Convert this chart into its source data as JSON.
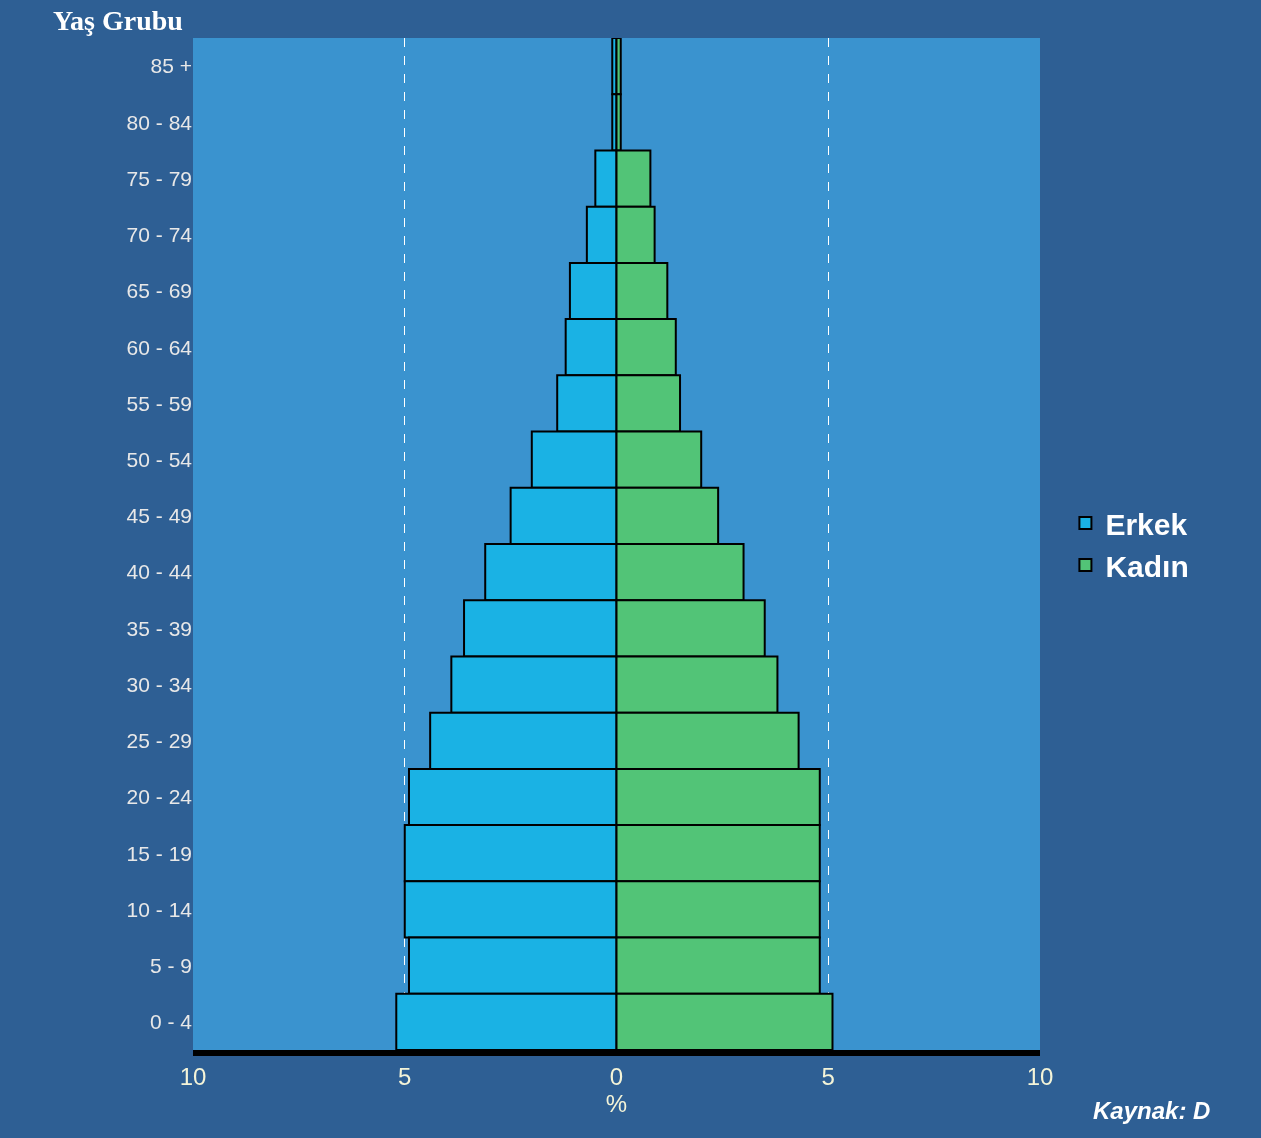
{
  "chart_data": {
    "type": "bar",
    "orientation": "horizontal",
    "stacked": true,
    "ylabel": "Yaş Grubu",
    "xlabel": "%",
    "categories": [
      "85 +",
      "80 - 84",
      "75 - 79",
      "70 - 74",
      "65 - 69",
      "60 - 64",
      "55 - 59",
      "50 - 54",
      "45 - 49",
      "40 - 44",
      "35 - 39",
      "30 - 34",
      "25 - 29",
      "20 - 24",
      "15 - 19",
      "10 - 14",
      "5 - 9",
      "0 - 4"
    ],
    "series": [
      {
        "name": "Erkek",
        "color": "#1ab2e4",
        "values": [
          -0.1,
          -0.1,
          -0.5,
          -0.7,
          -1.1,
          -1.2,
          -1.4,
          -2.0,
          -2.5,
          -3.1,
          -3.6,
          -3.9,
          -4.4,
          -4.9,
          -5.0,
          -5.0,
          -4.9,
          -5.2
        ]
      },
      {
        "name": "Kadın",
        "color": "#52c477",
        "values": [
          0.1,
          0.1,
          0.8,
          0.9,
          1.2,
          1.4,
          1.5,
          2.0,
          2.4,
          3.0,
          3.5,
          3.8,
          4.3,
          4.8,
          4.8,
          4.8,
          4.8,
          5.1
        ]
      }
    ],
    "xlim": [
      -10,
      10
    ],
    "xticks": [
      {
        "value": -10,
        "label": "10"
      },
      {
        "value": -5,
        "label": "5"
      },
      0,
      5,
      10
    ],
    "grid": "x",
    "legend": "right",
    "annotations": [
      "Kaynak: D"
    ]
  }
}
